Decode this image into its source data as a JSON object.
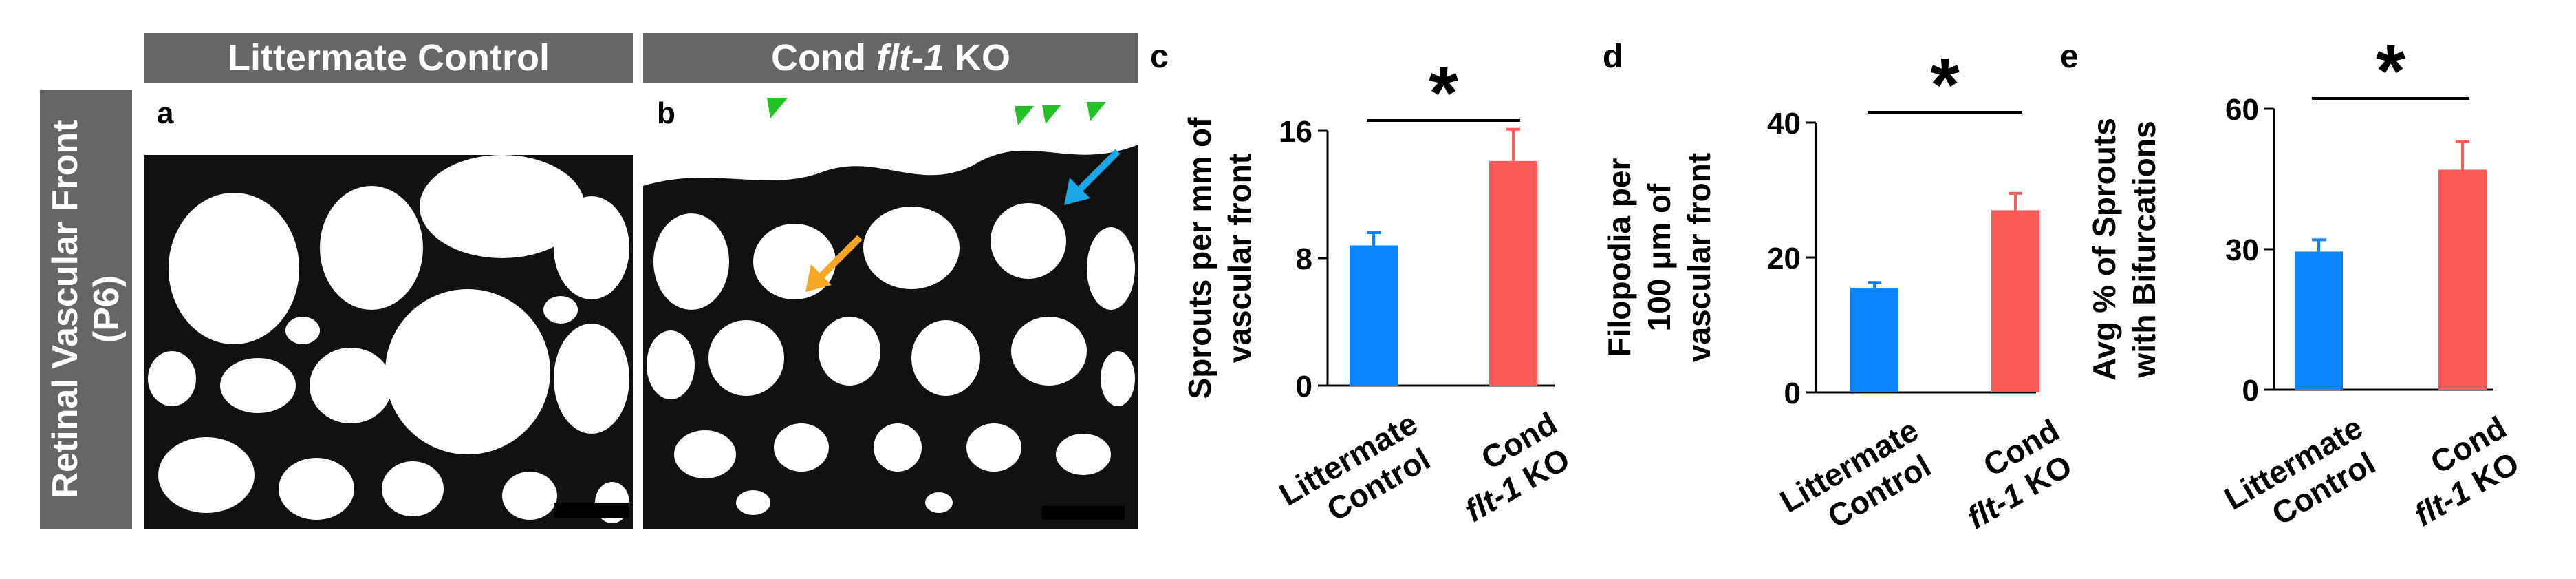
{
  "headers": {
    "left": "Littermate Control",
    "right_prefix": "Cond ",
    "right_gene": "flt-1",
    "right_suffix": " KO",
    "side": "Retinal Vascular Front (P6)"
  },
  "panel_letters": {
    "a": "a",
    "b": "b",
    "c": "c",
    "d": "d",
    "e": "e"
  },
  "colors": {
    "control": "#0a84ff",
    "ko": "#ff5a5a",
    "green_arrow": "#22c322",
    "blue_arrow": "#1aa7e8",
    "orange_arrow": "#f5a623"
  },
  "chart_data": [
    {
      "type": "bar",
      "panel": "c",
      "ylabel_lines": [
        "Sprouts per mm of",
        "vascular front"
      ],
      "yticks": [
        0,
        8,
        16
      ],
      "ylim": [
        0,
        16
      ],
      "categories": [
        [
          "Littermate",
          "Control"
        ],
        [
          "Cond",
          "flt-1 KO"
        ]
      ],
      "values": [
        8.8,
        14.1
      ],
      "errors": [
        0.8,
        2.0
      ],
      "significance": "*"
    },
    {
      "type": "bar",
      "panel": "d",
      "ylabel_lines": [
        "Filopodia per",
        "100 μm of",
        "vascular front"
      ],
      "yticks": [
        0,
        20,
        40
      ],
      "ylim": [
        0,
        40
      ],
      "categories": [
        [
          "Littermate",
          "Control"
        ],
        [
          "Cond",
          "flt-1 KO"
        ]
      ],
      "values": [
        15.5,
        27
      ],
      "errors": [
        0.8,
        2.5
      ],
      "significance": "*"
    },
    {
      "type": "bar",
      "panel": "e",
      "ylabel_lines": [
        "Avg % of Sprouts",
        "with Bifurcations"
      ],
      "yticks": [
        0,
        30,
        60
      ],
      "ylim": [
        0,
        60
      ],
      "categories": [
        [
          "Littermate",
          "Control"
        ],
        [
          "Cond",
          "flt-1 KO"
        ]
      ],
      "values": [
        29.5,
        47
      ],
      "errors": [
        2.5,
        6.0
      ],
      "significance": "*"
    }
  ]
}
